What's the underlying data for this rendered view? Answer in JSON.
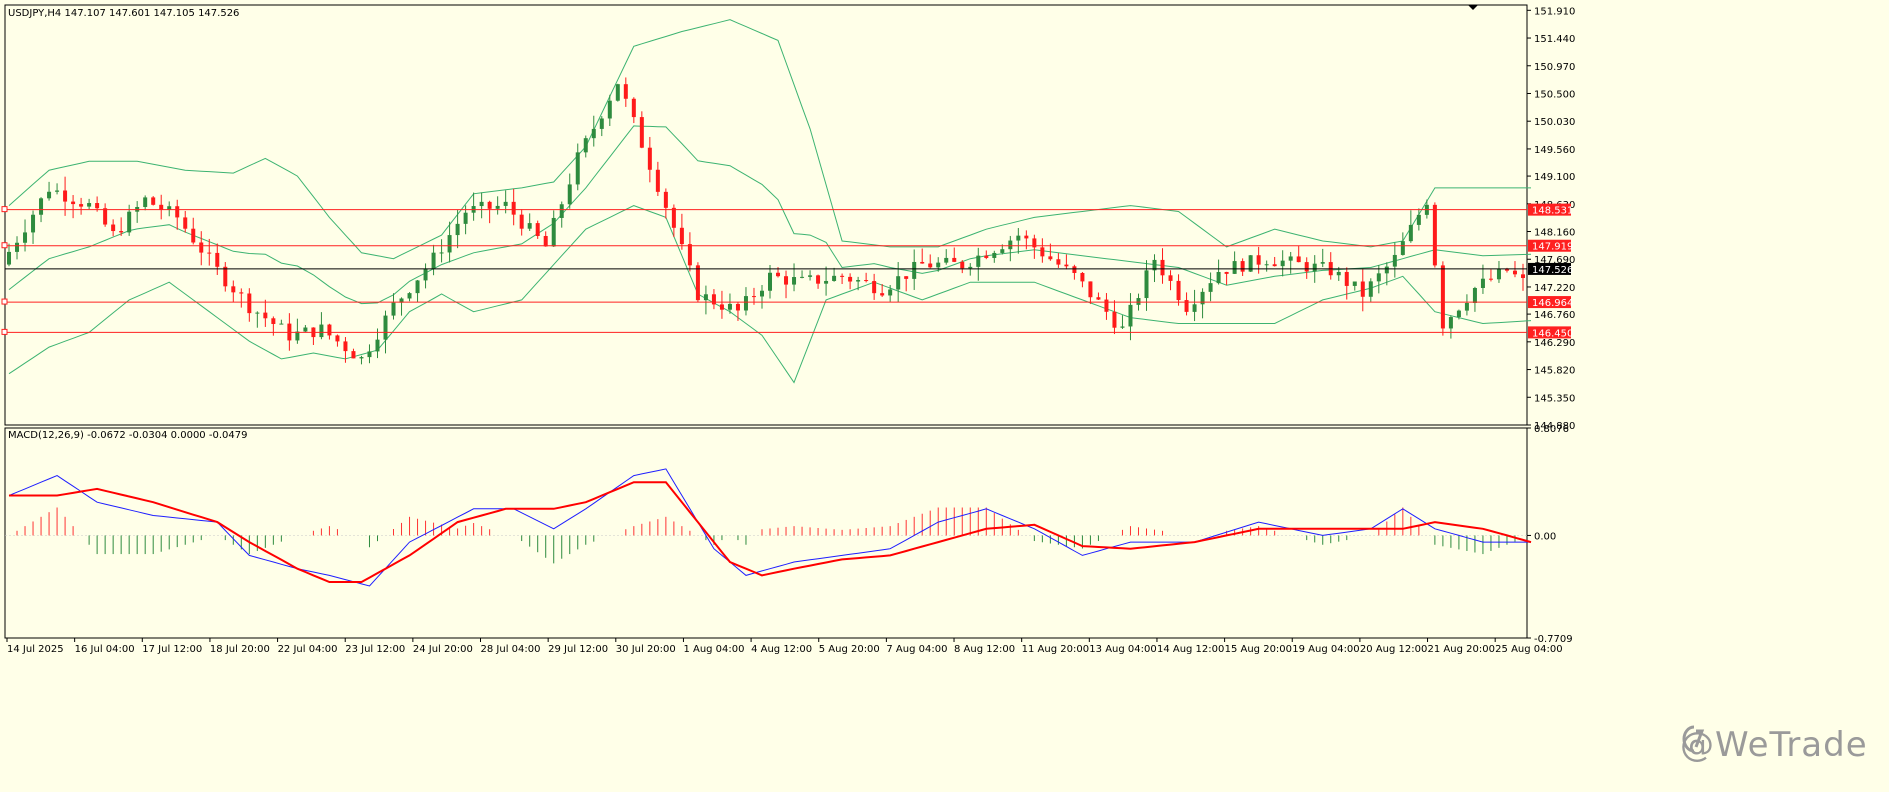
{
  "colors": {
    "background": "#ffffe8",
    "bull": "#2e8b3e",
    "bear": "#ff1a1a",
    "bands": "#3cb371",
    "level_line": "#ff2020",
    "price_line": "#000000",
    "macd_main": "#1e1eff",
    "macd_signal": "#ff0000",
    "hist_pos": "#ff3333",
    "hist_neg": "#2e8b3e",
    "axis_text": "#000000"
  },
  "header": {
    "title": "USDJPY,H4",
    "ohlc": "147.107 147.601 147.105 147.526"
  },
  "macd_header": {
    "label": "MACD(12,26,9) -0.0672 -0.0304 0.0000 -0.0479"
  },
  "watermark": {
    "text": "@WeTrade",
    "icon": "wetrade-logo-icon"
  },
  "chart_data": [
    {
      "type": "candlestick",
      "title": "USDJPY,H4",
      "ylim": [
        144.88,
        152.0
      ],
      "y_ticks": [
        "151.910",
        "151.440",
        "150.970",
        "150.500",
        "150.030",
        "149.560",
        "149.100",
        "148.630",
        "148.160",
        "147.690",
        "147.220",
        "146.760",
        "146.290",
        "145.820",
        "145.350",
        "144.880"
      ],
      "x_ticks": [
        "14 Jul 2025",
        "16 Jul 04:00",
        "17 Jul 12:00",
        "18 Jul 20:00",
        "22 Jul 04:00",
        "23 Jul 12:00",
        "24 Jul 20:00",
        "28 Jul 04:00",
        "29 Jul 12:00",
        "30 Jul 20:00",
        "1 Aug 04:00",
        "4 Aug 12:00",
        "5 Aug 20:00",
        "7 Aug 04:00",
        "8 Aug 12:00",
        "11 Aug 20:00",
        "13 Aug 04:00",
        "14 Aug 12:00",
        "15 Aug 20:00",
        "19 Aug 04:00",
        "20 Aug 12:00",
        "21 Aug 20:00",
        "25 Aug 04:00"
      ],
      "current_price": 147.526,
      "horizontal_levels": [
        148.531,
        147.919,
        146.964,
        146.45
      ],
      "close_path": [
        [
          0,
          147.6
        ],
        [
          6,
          148.9
        ],
        [
          11,
          148.6
        ],
        [
          14,
          148.1
        ],
        [
          18,
          148.7
        ],
        [
          22,
          148.4
        ],
        [
          27,
          147.5
        ],
        [
          31,
          146.9
        ],
        [
          36,
          146.4
        ],
        [
          40,
          146.5
        ],
        [
          45,
          146.0
        ],
        [
          49,
          146.9
        ],
        [
          54,
          147.7
        ],
        [
          58,
          148.5
        ],
        [
          63,
          148.6
        ],
        [
          68,
          147.9
        ],
        [
          72,
          149.4
        ],
        [
          77,
          150.7
        ],
        [
          83,
          148.6
        ],
        [
          87,
          147.1
        ],
        [
          92,
          146.8
        ],
        [
          96,
          147.4
        ],
        [
          100,
          147.3
        ],
        [
          105,
          147.4
        ],
        [
          110,
          147.2
        ],
        [
          115,
          147.6
        ],
        [
          120,
          147.6
        ],
        [
          127,
          148.1
        ],
        [
          131,
          147.7
        ],
        [
          134,
          147.4
        ],
        [
          140,
          146.5
        ],
        [
          144,
          147.7
        ],
        [
          148,
          146.9
        ],
        [
          152,
          147.5
        ],
        [
          158,
          147.7
        ],
        [
          162,
          147.6
        ],
        [
          166,
          147.5
        ],
        [
          170,
          147.1
        ],
        [
          174,
          147.7
        ],
        [
          178,
          148.7
        ],
        [
          180,
          146.6
        ],
        [
          184,
          147.2
        ],
        [
          188,
          147.5
        ],
        [
          190,
          147.3
        ]
      ],
      "lower_band_path": [
        [
          0,
          145.75
        ],
        [
          5,
          146.2
        ],
        [
          10,
          146.45
        ],
        [
          15,
          147.0
        ],
        [
          20,
          147.3
        ],
        [
          26,
          146.7
        ],
        [
          30,
          146.3
        ],
        [
          34,
          146.0
        ],
        [
          38,
          146.1
        ],
        [
          42,
          146.0
        ],
        [
          46,
          146.15
        ],
        [
          50,
          146.8
        ],
        [
          54,
          147.1
        ],
        [
          58,
          146.8
        ],
        [
          64,
          147.0
        ],
        [
          68,
          147.6
        ],
        [
          72,
          148.2
        ],
        [
          78,
          148.6
        ],
        [
          82,
          148.4
        ],
        [
          86,
          147.1
        ],
        [
          90,
          146.8
        ],
        [
          94,
          146.4
        ],
        [
          98,
          145.6
        ],
        [
          102,
          147.0
        ],
        [
          108,
          147.3
        ],
        [
          114,
          147.0
        ],
        [
          120,
          147.3
        ],
        [
          128,
          147.3
        ],
        [
          134,
          147.0
        ],
        [
          140,
          146.7
        ],
        [
          146,
          146.6
        ],
        [
          152,
          146.6
        ],
        [
          158,
          146.6
        ],
        [
          164,
          147.0
        ],
        [
          170,
          147.2
        ],
        [
          174,
          147.4
        ],
        [
          178,
          146.8
        ],
        [
          184,
          146.6
        ],
        [
          190,
          146.65
        ]
      ],
      "upper_band_path": [
        [
          0,
          148.6
        ],
        [
          5,
          149.2
        ],
        [
          10,
          149.35
        ],
        [
          16,
          149.35
        ],
        [
          22,
          149.2
        ],
        [
          28,
          149.15
        ],
        [
          32,
          149.4
        ],
        [
          36,
          149.1
        ],
        [
          40,
          148.4
        ],
        [
          44,
          147.8
        ],
        [
          48,
          147.7
        ],
        [
          54,
          148.1
        ],
        [
          58,
          148.8
        ],
        [
          64,
          148.9
        ],
        [
          68,
          149.0
        ],
        [
          72,
          149.6
        ],
        [
          78,
          151.3
        ],
        [
          84,
          151.55
        ],
        [
          90,
          151.75
        ],
        [
          96,
          151.4
        ],
        [
          100,
          149.9
        ],
        [
          104,
          148.0
        ],
        [
          110,
          147.9
        ],
        [
          116,
          147.9
        ],
        [
          122,
          148.2
        ],
        [
          128,
          148.4
        ],
        [
          134,
          148.5
        ],
        [
          140,
          148.6
        ],
        [
          146,
          148.5
        ],
        [
          152,
          147.9
        ],
        [
          158,
          148.2
        ],
        [
          164,
          148.0
        ],
        [
          170,
          147.9
        ],
        [
          174,
          148.0
        ],
        [
          178,
          148.9
        ],
        [
          184,
          148.9
        ],
        [
          190,
          148.9
        ]
      ]
    },
    {
      "type": "line",
      "title": "MACD(12,26,9)",
      "ylim": [
        -0.7709,
        0.8076
      ],
      "y_ticks": [
        "0.8076",
        "0.00",
        "-0.7709"
      ],
      "series": [
        {
          "name": "MACD",
          "path": [
            [
              0,
              0.3
            ],
            [
              6,
              0.45
            ],
            [
              11,
              0.25
            ],
            [
              18,
              0.15
            ],
            [
              26,
              0.1
            ],
            [
              30,
              -0.15
            ],
            [
              36,
              -0.25
            ],
            [
              40,
              -0.3
            ],
            [
              45,
              -0.38
            ],
            [
              50,
              -0.05
            ],
            [
              58,
              0.2
            ],
            [
              63,
              0.2
            ],
            [
              68,
              0.05
            ],
            [
              72,
              0.2
            ],
            [
              78,
              0.45
            ],
            [
              82,
              0.5
            ],
            [
              88,
              -0.1
            ],
            [
              92,
              -0.3
            ],
            [
              98,
              -0.2
            ],
            [
              104,
              -0.15
            ],
            [
              110,
              -0.1
            ],
            [
              116,
              0.1
            ],
            [
              122,
              0.2
            ],
            [
              128,
              0.05
            ],
            [
              134,
              -0.15
            ],
            [
              140,
              -0.05
            ],
            [
              148,
              -0.05
            ],
            [
              156,
              0.1
            ],
            [
              164,
              0.0
            ],
            [
              170,
              0.05
            ],
            [
              174,
              0.2
            ],
            [
              178,
              0.05
            ],
            [
              184,
              -0.05
            ],
            [
              190,
              -0.05
            ]
          ]
        },
        {
          "name": "Signal",
          "path": [
            [
              0,
              0.3
            ],
            [
              6,
              0.3
            ],
            [
              11,
              0.35
            ],
            [
              18,
              0.25
            ],
            [
              26,
              0.1
            ],
            [
              30,
              -0.05
            ],
            [
              36,
              -0.25
            ],
            [
              40,
              -0.35
            ],
            [
              44,
              -0.35
            ],
            [
              50,
              -0.15
            ],
            [
              56,
              0.1
            ],
            [
              62,
              0.2
            ],
            [
              68,
              0.2
            ],
            [
              72,
              0.25
            ],
            [
              78,
              0.4
            ],
            [
              82,
              0.4
            ],
            [
              86,
              0.1
            ],
            [
              90,
              -0.2
            ],
            [
              94,
              -0.3
            ],
            [
              98,
              -0.25
            ],
            [
              104,
              -0.18
            ],
            [
              110,
              -0.15
            ],
            [
              116,
              -0.05
            ],
            [
              122,
              0.05
            ],
            [
              128,
              0.08
            ],
            [
              134,
              -0.08
            ],
            [
              140,
              -0.1
            ],
            [
              148,
              -0.05
            ],
            [
              156,
              0.05
            ],
            [
              164,
              0.05
            ],
            [
              170,
              0.05
            ],
            [
              174,
              0.05
            ],
            [
              178,
              0.1
            ],
            [
              184,
              0.05
            ],
            [
              190,
              -0.05
            ]
          ]
        }
      ]
    }
  ]
}
